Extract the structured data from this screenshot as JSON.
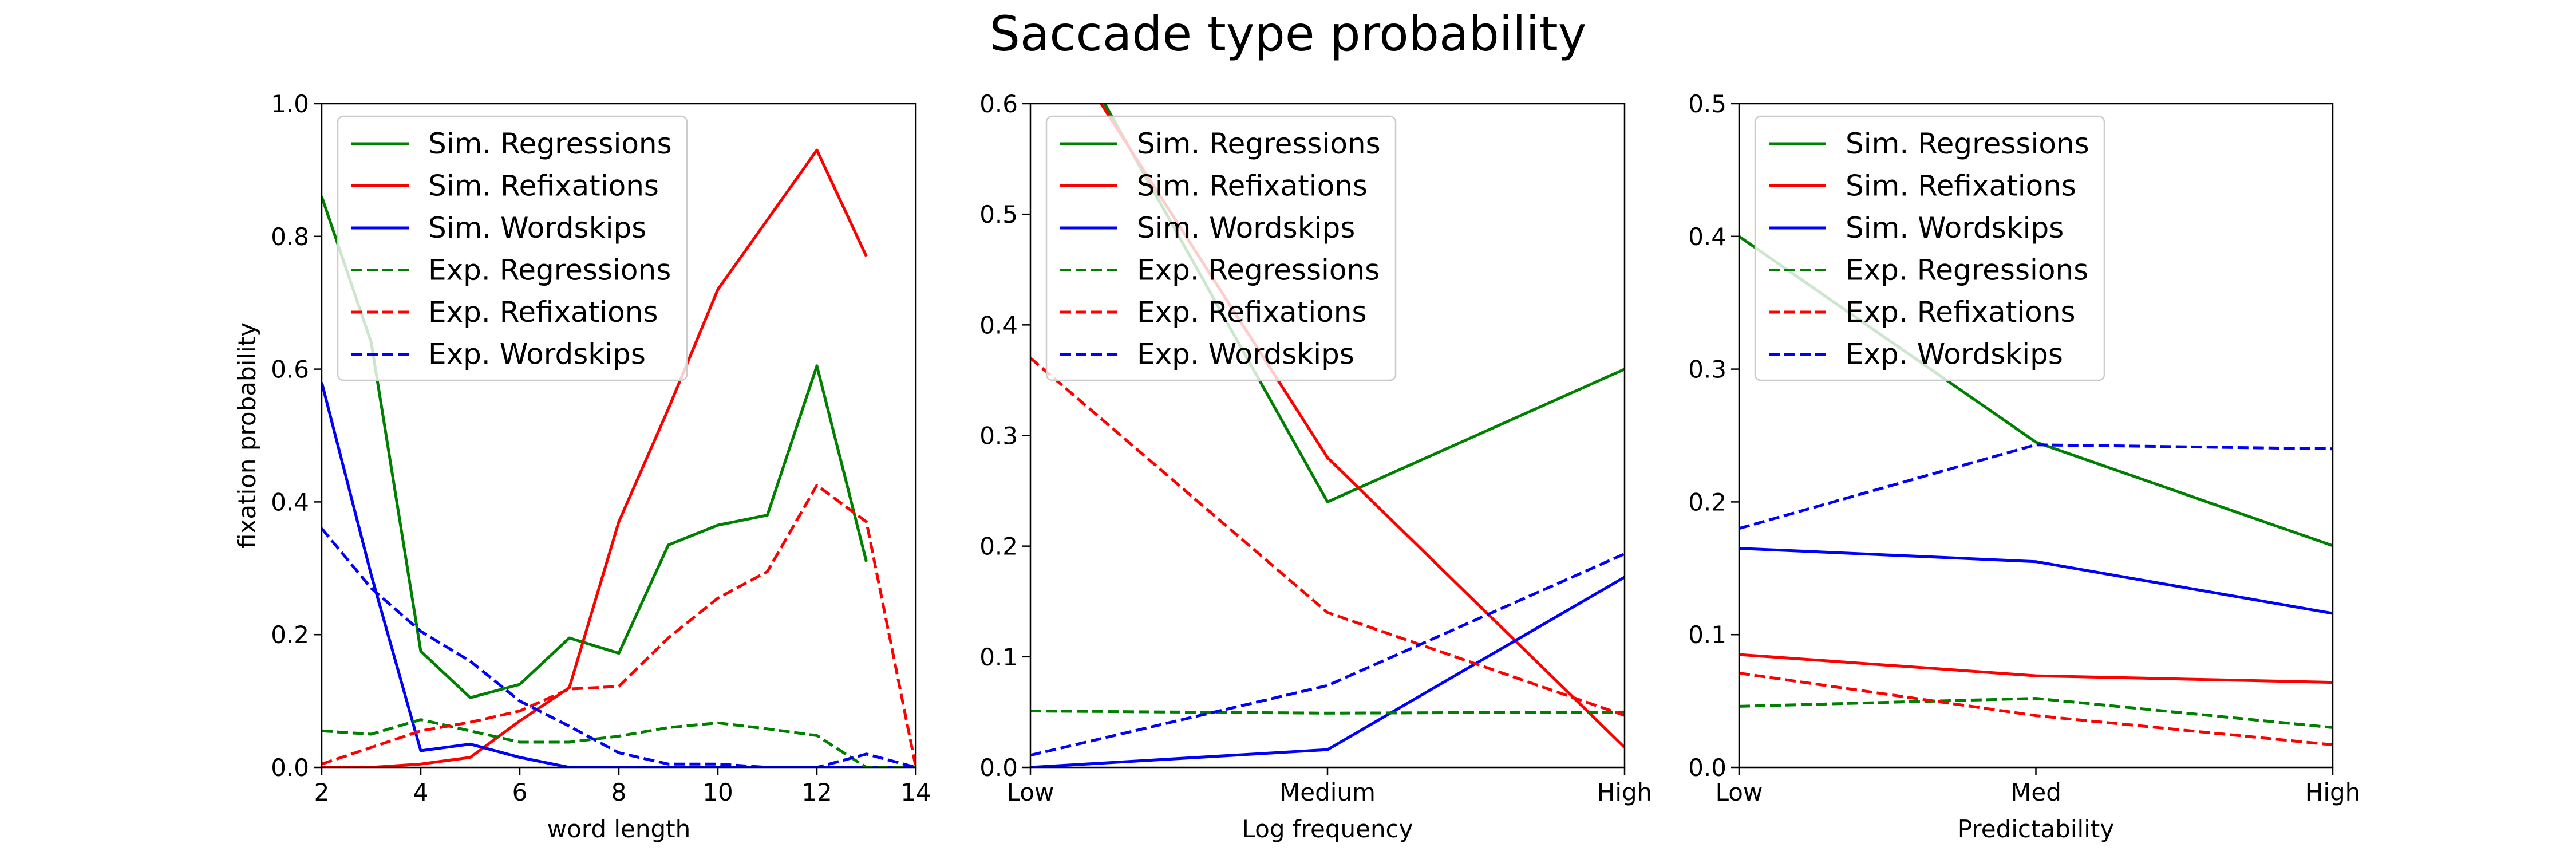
{
  "title": "Saccade type probability",
  "legend": {
    "placement": "upper-left",
    "entries": [
      {
        "label": "Sim. Regressions",
        "color": "#008000",
        "style": "solid"
      },
      {
        "label": "Sim. Refixations",
        "color": "#ff0000",
        "style": "solid"
      },
      {
        "label": "Sim. Wordskips",
        "color": "#0000ff",
        "style": "solid"
      },
      {
        "label": "Exp. Regressions",
        "color": "#008000",
        "style": "dashed"
      },
      {
        "label": "Exp. Refixations",
        "color": "#ff0000",
        "style": "dashed"
      },
      {
        "label": "Exp. Wordskips",
        "color": "#0000ff",
        "style": "dashed"
      }
    ]
  },
  "chart_data": [
    {
      "type": "line",
      "xlabel": "word length",
      "ylabel": "fixation probability",
      "xlim": [
        2,
        14
      ],
      "ylim": [
        0,
        1.0
      ],
      "xticks": [
        2,
        4,
        6,
        8,
        10,
        12,
        14
      ],
      "xtick_labels": [
        "2",
        "4",
        "6",
        "8",
        "10",
        "12",
        "14"
      ],
      "yticks": [
        0,
        0.2,
        0.4,
        0.6,
        0.8,
        1.0
      ],
      "ytick_labels": [
        "0.0",
        "0.2",
        "0.4",
        "0.6",
        "0.8",
        "1.0"
      ],
      "series": [
        {
          "name": "Sim. Regressions",
          "color": "#008000",
          "style": "solid",
          "x": [
            2,
            3,
            4,
            5,
            6,
            7,
            8,
            9,
            10,
            11,
            12,
            13
          ],
          "y": [
            0.86,
            0.64,
            0.175,
            0.105,
            0.125,
            0.195,
            0.172,
            0.335,
            0.365,
            0.38,
            0.605,
            0.31
          ]
        },
        {
          "name": "Sim. Refixations",
          "color": "#ff0000",
          "style": "solid",
          "x": [
            2,
            3,
            4,
            5,
            6,
            7,
            8,
            9,
            10,
            11,
            12,
            13
          ],
          "y": [
            0.0,
            0.0,
            0.005,
            0.015,
            0.07,
            0.12,
            0.37,
            0.54,
            0.72,
            0.825,
            0.93,
            0.77
          ]
        },
        {
          "name": "Sim. Wordskips",
          "color": "#0000ff",
          "style": "solid",
          "x": [
            2,
            3,
            4,
            5,
            6,
            7,
            8,
            9,
            10,
            11,
            12,
            13,
            14
          ],
          "y": [
            0.58,
            0.29,
            0.025,
            0.035,
            0.015,
            0.0,
            0.0,
            0.0,
            0.0,
            0.0,
            0.0,
            0.0,
            0.0
          ]
        },
        {
          "name": "Exp. Regressions",
          "color": "#008000",
          "style": "dashed",
          "x": [
            2,
            3,
            4,
            5,
            6,
            7,
            8,
            9,
            10,
            11,
            12,
            13,
            14
          ],
          "y": [
            0.055,
            0.05,
            0.072,
            0.055,
            0.038,
            0.038,
            0.047,
            0.06,
            0.067,
            0.058,
            0.048,
            0.0,
            0.0
          ]
        },
        {
          "name": "Exp. Refixations",
          "color": "#ff0000",
          "style": "dashed",
          "x": [
            2,
            3,
            4,
            5,
            6,
            7,
            8,
            9,
            10,
            11,
            12,
            13,
            14
          ],
          "y": [
            0.005,
            0.03,
            0.055,
            0.068,
            0.085,
            0.118,
            0.122,
            0.195,
            0.255,
            0.295,
            0.425,
            0.37,
            0.0
          ]
        },
        {
          "name": "Exp. Wordskips",
          "color": "#0000ff",
          "style": "dashed",
          "x": [
            2,
            3,
            4,
            5,
            6,
            7,
            8,
            9,
            10,
            11,
            12,
            13,
            14
          ],
          "y": [
            0.36,
            0.27,
            0.205,
            0.16,
            0.1,
            0.062,
            0.022,
            0.005,
            0.005,
            0.0,
            0.0,
            0.02,
            0.0
          ]
        }
      ]
    },
    {
      "type": "line",
      "xlabel": "Log frequency",
      "ylabel": "",
      "xlim": [
        0,
        2
      ],
      "ylim": [
        0,
        0.6
      ],
      "xticks": [
        0,
        1,
        2
      ],
      "xtick_labels": [
        "Low",
        "Medium",
        "High"
      ],
      "yticks": [
        0,
        0.1,
        0.2,
        0.3,
        0.4,
        0.5,
        0.6
      ],
      "ytick_labels": [
        "0.0",
        "0.1",
        "0.2",
        "0.3",
        "0.4",
        "0.5",
        "0.6"
      ],
      "series": [
        {
          "name": "Sim. Regressions",
          "color": "#008000",
          "style": "solid",
          "x": [
            0,
            1,
            2
          ],
          "y": [
            0.72,
            0.24,
            0.36
          ]
        },
        {
          "name": "Sim. Refixations",
          "color": "#ff0000",
          "style": "solid",
          "x": [
            0,
            1,
            2
          ],
          "y": [
            0.7,
            0.28,
            0.018
          ]
        },
        {
          "name": "Sim. Wordskips",
          "color": "#0000ff",
          "style": "solid",
          "x": [
            0,
            1,
            2
          ],
          "y": [
            0.0,
            0.016,
            0.172
          ]
        },
        {
          "name": "Exp. Regressions",
          "color": "#008000",
          "style": "dashed",
          "x": [
            0,
            1,
            2
          ],
          "y": [
            0.051,
            0.049,
            0.05
          ]
        },
        {
          "name": "Exp. Refixations",
          "color": "#ff0000",
          "style": "dashed",
          "x": [
            0,
            1,
            2
          ],
          "y": [
            0.37,
            0.14,
            0.047
          ]
        },
        {
          "name": "Exp. Wordskips",
          "color": "#0000ff",
          "style": "dashed",
          "x": [
            0,
            1,
            2
          ],
          "y": [
            0.011,
            0.074,
            0.193
          ]
        }
      ]
    },
    {
      "type": "line",
      "xlabel": "Predictability",
      "ylabel": "",
      "xlim": [
        0,
        2
      ],
      "ylim": [
        0,
        0.5
      ],
      "xticks": [
        0,
        1,
        2
      ],
      "xtick_labels": [
        "Low",
        "Med",
        "High"
      ],
      "yticks": [
        0,
        0.1,
        0.2,
        0.3,
        0.4,
        0.5
      ],
      "ytick_labels": [
        "0.0",
        "0.1",
        "0.2",
        "0.3",
        "0.4",
        "0.5"
      ],
      "series": [
        {
          "name": "Sim. Regressions",
          "color": "#008000",
          "style": "solid",
          "x": [
            0,
            1,
            2
          ],
          "y": [
            0.4,
            0.245,
            0.167
          ]
        },
        {
          "name": "Sim. Refixations",
          "color": "#ff0000",
          "style": "solid",
          "x": [
            0,
            1,
            2
          ],
          "y": [
            0.085,
            0.069,
            0.064
          ]
        },
        {
          "name": "Sim. Wordskips",
          "color": "#0000ff",
          "style": "solid",
          "x": [
            0,
            1,
            2
          ],
          "y": [
            0.165,
            0.155,
            0.116
          ]
        },
        {
          "name": "Exp. Regressions",
          "color": "#008000",
          "style": "dashed",
          "x": [
            0,
            1,
            2
          ],
          "y": [
            0.046,
            0.052,
            0.03
          ]
        },
        {
          "name": "Exp. Refixations",
          "color": "#ff0000",
          "style": "dashed",
          "x": [
            0,
            1,
            2
          ],
          "y": [
            0.071,
            0.039,
            0.017
          ]
        },
        {
          "name": "Exp. Wordskips",
          "color": "#0000ff",
          "style": "dashed",
          "x": [
            0,
            1,
            2
          ],
          "y": [
            0.18,
            0.243,
            0.24
          ]
        }
      ]
    }
  ]
}
